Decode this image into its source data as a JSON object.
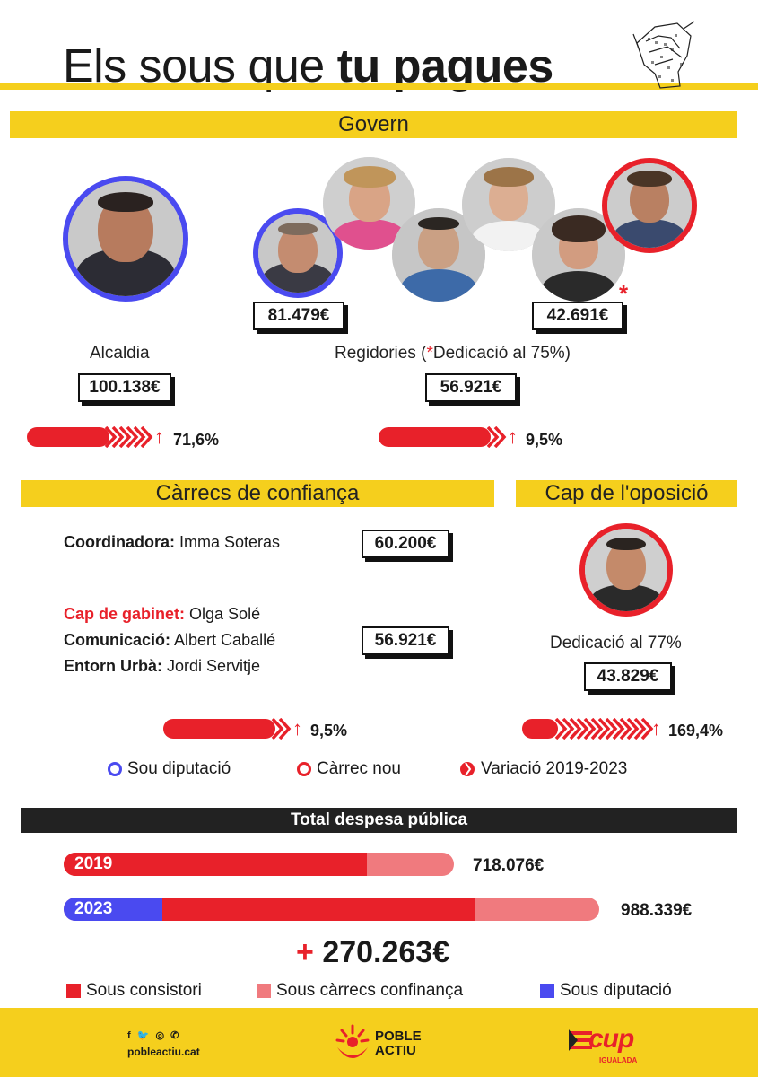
{
  "title": {
    "part1": "Els sous que",
    "part2": "tu pagues"
  },
  "govern": {
    "heading": "Govern",
    "alcaldia_label": "Alcaldia",
    "alcaldia_salary": "100.138€",
    "alcaldia_pct": "71,6%",
    "regidor_salary_a": "81.479€",
    "regidor_salary_b": "42.691€",
    "regidor_asterisk": "*",
    "regidories_label_pre": "Regidories (",
    "regidories_label_star": "*",
    "regidories_label_post": "Dedicació al 75%)",
    "regidories_salary": "56.921€",
    "regidories_pct": "9,5%"
  },
  "confianca": {
    "heading": "Càrrecs de confiança",
    "coord_role": "Coordinadora:",
    "coord_name": "Imma Soteras",
    "coord_salary": "60.200€",
    "cap_role": "Cap de gabinet:",
    "cap_name": "Olga Solé",
    "com_role": "Comunicació:",
    "com_name": "Albert Caballé",
    "entorn_role": "Entorn Urbà:",
    "entorn_name": "Jordi Servitje",
    "group_salary": "56.921€",
    "pct": "9,5%"
  },
  "oposicio": {
    "heading": "Cap de l'oposició",
    "label": "Dedicació al 77%",
    "salary": "43.829€",
    "pct": "169,4%"
  },
  "legend": {
    "diputacio": "Sou diputació",
    "nou": "Càrrec nou",
    "variacio": "Variació 2019-2023"
  },
  "total": {
    "heading": "Total despesa pública",
    "year_2019": "2019",
    "value_2019": "718.076€",
    "year_2023": "2023",
    "value_2023": "988.339€",
    "plus": "+",
    "increase": "270.263€",
    "bars": {
      "2019": {
        "consistori": 0.65,
        "confianca": 0.15
      },
      "2023": {
        "diputacio": 0.18,
        "consistori": 0.56,
        "confianca": 0.22
      }
    }
  },
  "bottom_legend": {
    "consistori": "Sous consistori",
    "confianca": "Sous càrrecs confinança",
    "diputacio": "Sous diputació"
  },
  "footer": {
    "social_icons": "f 🐦 ◎ ✆",
    "website": "pobleactiu.cat",
    "brand1_line1": "POBLE",
    "brand1_line2": "ACTIU",
    "brand2": "cup",
    "brand2_sub": "IGUALADA"
  },
  "colors": {
    "yellow": "#f5cf1d",
    "red": "#e8212a",
    "pink": "#f07a7e",
    "blue": "#4a4af0",
    "dark": "#222222"
  }
}
